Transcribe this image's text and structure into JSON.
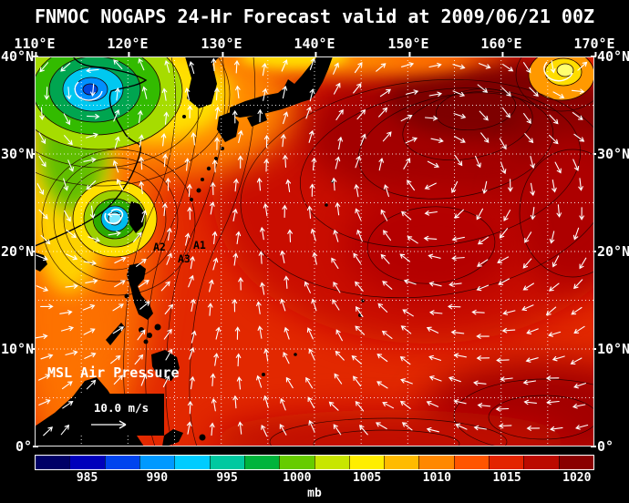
{
  "title": "FNMOC NOGAPS 24-Hr Forecast valid at 2009/06/21 00Z",
  "axes": {
    "top": [
      "110°E",
      "120°E",
      "130°E",
      "140°E",
      "150°E",
      "160°E",
      "170°E"
    ],
    "left": [
      "40°N",
      "30°N",
      "20°N",
      "10°N",
      "0°"
    ],
    "right": [
      "40°N",
      "30°N",
      "20°N",
      "10°N",
      "0°"
    ]
  },
  "overlay": {
    "field_label": "MSL Air Pressure",
    "wind_scale_label": "10.0 m/s",
    "storm_labels": [
      "A2",
      "A1",
      "A3"
    ]
  },
  "colorbar": {
    "unit": "mb",
    "ticks": [
      "985",
      "990",
      "995",
      "1000",
      "1005",
      "1010",
      "1015",
      "1020"
    ],
    "colors": [
      "#000066",
      "#0000bb",
      "#0044ee",
      "#0099ff",
      "#00ccff",
      "#00c9a0",
      "#00b43c",
      "#66cc00",
      "#c8e600",
      "#ffee00",
      "#ffbb00",
      "#ff8800",
      "#ff5500",
      "#e32400",
      "#bb0a00",
      "#8a0000"
    ]
  },
  "chart_data": {
    "type": "heatmap",
    "title": "FNMOC NOGAPS 24-Hr Forecast valid at 2009/06/21 00Z",
    "model": "FNMOC NOGAPS",
    "forecast": "24-Hr",
    "valid": "2009/06/21 00Z",
    "field": "MSL Air Pressure",
    "units": "mb",
    "lon_range_deg_e": [
      110,
      170
    ],
    "lat_range_deg_n": [
      0,
      40
    ],
    "grid_spacing_deg": 5,
    "colorbar_ticks_mb": [
      985,
      990,
      995,
      1000,
      1005,
      1010,
      1015,
      1020
    ],
    "colorbar_span_mb": [
      982.5,
      1022.5
    ],
    "wind_reference_vector_mps": 10.0,
    "features": [
      {
        "name": "extratropical low over Yellow Sea / NE China",
        "lon_e": 116.5,
        "lat_n": 36.5,
        "approx_central_pressure_mb": 984
      },
      {
        "name": "tropical cyclone west of Taiwan (track positions A1, A2, A3)",
        "lon_e": 120.6,
        "lat_n": 23.3,
        "approx_central_pressure_mb": 992
      },
      {
        "name": "broad subtropical high, western North Pacific",
        "lon_e": 152,
        "lat_n": 30,
        "approx_central_pressure_mb": 1021
      },
      {
        "name": "small low in northeast corner",
        "lon_e": 166.5,
        "lat_n": 38.5,
        "approx_central_pressure_mb": 1002
      }
    ]
  }
}
